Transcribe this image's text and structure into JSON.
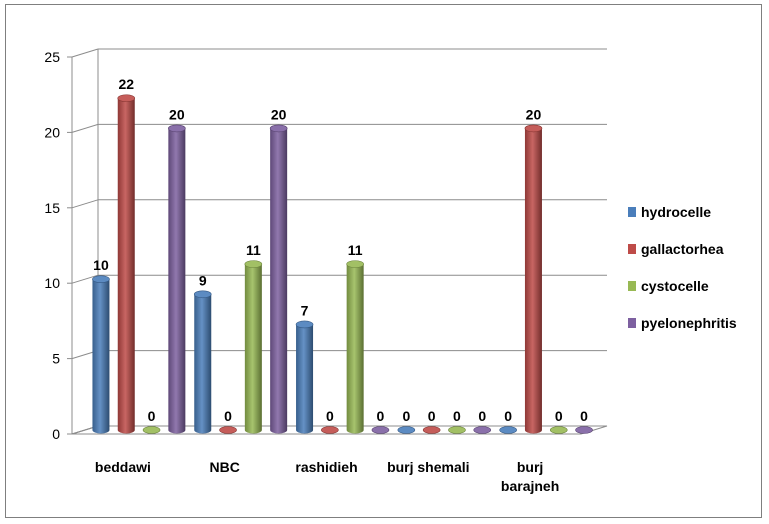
{
  "chart_data": {
    "type": "bar",
    "subtype": "3d-cylinder",
    "categories": [
      [
        "beddawi"
      ],
      [
        "NBC"
      ],
      [
        "rashidieh"
      ],
      [
        "burj shemali"
      ],
      [
        "burj",
        "barajneh"
      ]
    ],
    "series": [
      {
        "name": "hydrocelle",
        "values": [
          10,
          9,
          7,
          0,
          0
        ],
        "color": "#4a7ebb"
      },
      {
        "name": "gallactorhea",
        "values": [
          22,
          0,
          0,
          0,
          20
        ],
        "color": "#be4b48"
      },
      {
        "name": "cystocelle",
        "values": [
          0,
          11,
          11,
          0,
          0
        ],
        "color": "#98b954"
      },
      {
        "name": "pyelonephritis",
        "values": [
          20,
          20,
          0,
          0,
          0
        ],
        "color": "#7d60a0"
      }
    ],
    "ylim": [
      0,
      25
    ],
    "yticks": [
      0,
      5,
      10,
      15,
      20,
      25
    ],
    "grid": true,
    "legend": "right",
    "data_labels": true
  }
}
